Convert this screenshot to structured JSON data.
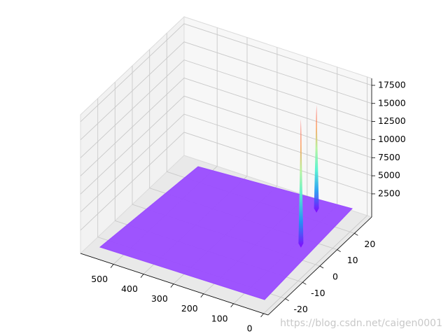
{
  "chart_data": {
    "type": "surface3d",
    "x": [
      74,
      127
    ],
    "y": [
      4.5,
      22.7
    ],
    "values": [
      17400,
      14500
    ],
    "xlim": [
      -15,
      610
    ],
    "ylim": [
      -30,
      30
    ],
    "zlim": [
      -700,
      18460
    ],
    "xticks": [
      0,
      100,
      200,
      300,
      400,
      500
    ],
    "yticks": [
      -20,
      -10,
      0,
      10,
      20
    ],
    "zticks": [
      2500,
      5000,
      7500,
      10000,
      12500,
      15000,
      17500
    ],
    "plane_color": "#9a4cff",
    "colormap": [
      "#8000ff",
      "#1996f3",
      "#4df3ce",
      "#b2f396",
      "#ff964f",
      "#ff0000"
    ],
    "grid": true,
    "watermark": "https://blog.csdn.net/caigen0001"
  }
}
